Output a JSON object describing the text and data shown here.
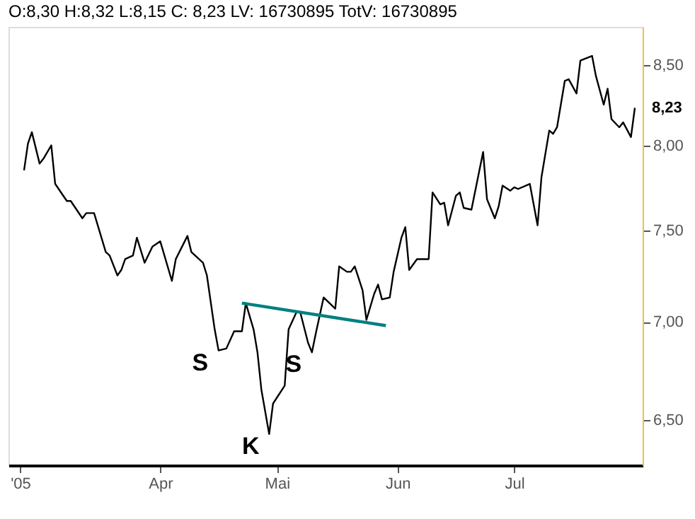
{
  "chart_data": {
    "type": "line",
    "title": "O:8,30 H:8,32 L:8,15 C: 8,23 LV: 16730895 TotV: 16730895",
    "x": [
      "2005-02-25",
      "2005-02-26",
      "2005-02-27",
      "2005-03-01",
      "2005-03-02",
      "2005-03-04",
      "2005-03-05",
      "2005-03-08",
      "2005-03-09",
      "2005-03-12",
      "2005-03-13",
      "2005-03-15",
      "2005-03-18",
      "2005-03-19",
      "2005-03-21",
      "2005-03-22",
      "2005-03-23",
      "2005-03-25",
      "2005-03-26",
      "2005-03-28",
      "2005-03-30",
      "2005-04-01",
      "2005-04-04",
      "2005-04-05",
      "2005-04-08",
      "2005-04-09",
      "2005-04-12",
      "2005-04-13",
      "2005-04-15",
      "2005-04-16",
      "2005-04-18",
      "2005-04-20",
      "2005-04-22",
      "2005-04-23",
      "2005-04-25",
      "2005-04-26",
      "2005-04-27",
      "2005-04-29",
      "2005-04-30",
      "2005-05-03",
      "2005-05-04",
      "2005-05-06",
      "2005-05-07",
      "2005-05-09",
      "2005-05-10",
      "2005-05-11",
      "2005-05-13",
      "2005-05-16",
      "2005-05-17",
      "2005-05-19",
      "2005-05-20",
      "2005-05-21",
      "2005-05-23",
      "2005-05-24",
      "2005-05-26",
      "2005-05-27",
      "2005-05-28",
      "2005-05-30",
      "2005-05-31",
      "2005-06-02",
      "2005-06-03",
      "2005-06-04",
      "2005-06-06",
      "2005-06-09",
      "2005-06-10",
      "2005-06-12",
      "2005-06-13",
      "2005-06-14",
      "2005-06-16",
      "2005-06-17",
      "2005-06-18",
      "2005-06-20",
      "2005-06-23",
      "2005-06-24",
      "2005-06-26",
      "2005-06-27",
      "2005-06-28",
      "2005-06-30",
      "2005-07-01",
      "2005-07-02",
      "2005-07-05",
      "2005-07-07",
      "2005-07-08",
      "2005-07-10",
      "2005-07-11",
      "2005-07-12",
      "2005-07-14",
      "2005-07-15",
      "2005-07-17",
      "2005-07-18",
      "2005-07-21",
      "2005-07-22",
      "2005-07-24",
      "2005-07-25",
      "2005-07-26",
      "2005-07-28",
      "2005-07-29",
      "2005-07-31",
      "2005-08-01"
    ],
    "series": [
      {
        "color": "#000000",
        "values": [
          7.85,
          8.01,
          8.08,
          7.89,
          7.92,
          8.0,
          7.77,
          7.67,
          7.67,
          7.57,
          7.6,
          7.6,
          7.38,
          7.36,
          7.25,
          7.28,
          7.34,
          7.36,
          7.46,
          7.32,
          7.41,
          7.44,
          7.22,
          7.34,
          7.47,
          7.38,
          7.32,
          7.25,
          6.96,
          6.85,
          6.86,
          6.95,
          6.95,
          7.1,
          6.96,
          6.84,
          6.65,
          6.43,
          6.58,
          6.67,
          6.96,
          7.05,
          7.05,
          6.89,
          6.84,
          6.94,
          7.13,
          7.07,
          7.3,
          7.27,
          7.27,
          7.3,
          7.17,
          7.01,
          7.15,
          7.2,
          7.12,
          7.13,
          7.27,
          7.46,
          7.52,
          7.28,
          7.34,
          7.34,
          7.72,
          7.65,
          7.66,
          7.53,
          7.7,
          7.72,
          7.63,
          7.62,
          7.96,
          7.68,
          7.57,
          7.64,
          7.76,
          7.73,
          7.75,
          7.74,
          7.77,
          7.53,
          7.81,
          8.09,
          8.07,
          8.11,
          8.4,
          8.41,
          8.32,
          8.53,
          8.56,
          8.43,
          8.25,
          8.35,
          8.16,
          8.11,
          8.14,
          8.05,
          8.23
        ]
      },
      {
        "type": "line",
        "color": "#008080",
        "x": [
          "2005-04-22",
          "2005-05-29"
        ],
        "values": [
          7.1,
          6.98
        ]
      }
    ],
    "xlim": [
      "2005-02-21",
      "2005-08-03"
    ],
    "xticks": [
      {
        "value": "2005-02-24",
        "label": "'05"
      },
      {
        "value": "2005-04-01",
        "label": "Apr"
      },
      {
        "value": "2005-05-01",
        "label": "Mai"
      },
      {
        "value": "2005-06-01",
        "label": "Jun"
      },
      {
        "value": "2005-07-01",
        "label": "Jul"
      }
    ],
    "ylim": [
      6.28,
      8.75
    ],
    "yticks": [
      {
        "value": 6.5,
        "label": "6,50"
      },
      {
        "value": 7.0,
        "label": "7,00"
      },
      {
        "value": 7.5,
        "label": "7,50"
      },
      {
        "value": 8.0,
        "label": "8,00"
      },
      {
        "value": 8.5,
        "label": "8,50"
      }
    ],
    "log": "y",
    "grid": false,
    "marker": "none",
    "line_style": "solid",
    "annotations": [
      {
        "text": "S",
        "x": "2005-04-16",
        "y": 6.85
      },
      {
        "text": "K",
        "x": "2005-04-29",
        "y": 6.43
      },
      {
        "text": "S",
        "x": "2005-05-10",
        "y": 6.84
      },
      {
        "text": "8,23",
        "x": "2005-08-01",
        "y": 8.23
      }
    ]
  }
}
